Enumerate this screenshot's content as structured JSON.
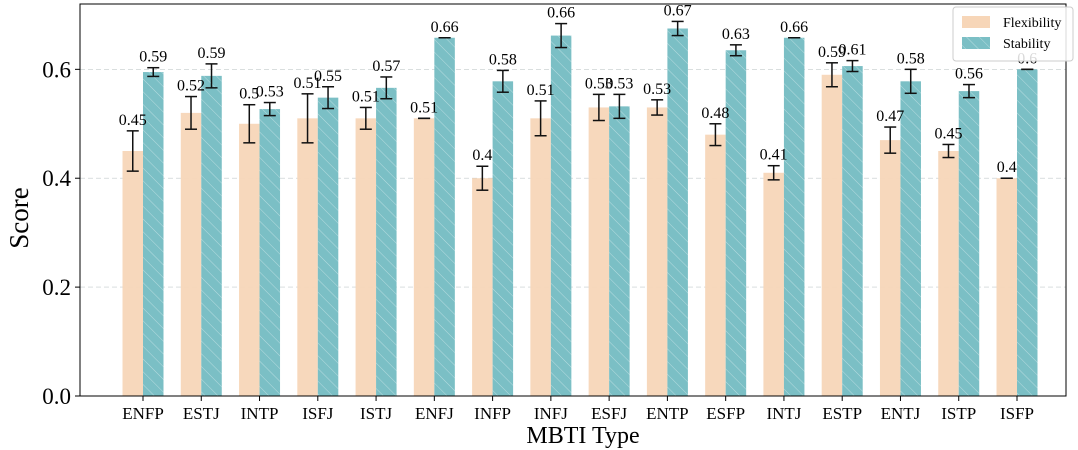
{
  "chart_data": {
    "type": "bar",
    "title": "",
    "xlabel": "MBTI Type",
    "ylabel": "Score",
    "ylim": [
      0,
      0.72
    ],
    "yticks": [
      0.0,
      0.2,
      0.4,
      0.6
    ],
    "ytick_labels": [
      "0.0",
      "0.2",
      "0.4",
      "0.6"
    ],
    "grid": true,
    "legend_position": "top-right",
    "categories": [
      "ENFP",
      "ESTJ",
      "INTP",
      "ISFJ",
      "ISTJ",
      "ENFJ",
      "INFP",
      "INFJ",
      "ESFJ",
      "ENTP",
      "ESFP",
      "INTJ",
      "ESTP",
      "ENTJ",
      "ISTP",
      "ISFP"
    ],
    "series": [
      {
        "name": "Flexibility",
        "color": "#f7d6b8",
        "values": [
          0.45,
          0.52,
          0.5,
          0.51,
          0.51,
          0.51,
          0.4,
          0.51,
          0.53,
          0.53,
          0.48,
          0.41,
          0.59,
          0.47,
          0.45,
          0.4
        ],
        "labels": [
          "0.45",
          "0.52",
          "0.5",
          "0.51",
          "0.51",
          "0.51",
          "0.4",
          "0.51",
          "0.53",
          "0.53",
          "0.48",
          "0.41",
          "0.59",
          "0.47",
          "0.45",
          "0.4"
        ],
        "errors": [
          0.037,
          0.03,
          0.035,
          0.045,
          0.02,
          0.0,
          0.022,
          0.032,
          0.024,
          0.014,
          0.02,
          0.013,
          0.022,
          0.024,
          0.012,
          0.0
        ]
      },
      {
        "name": "Stability",
        "color": "#7bbfc5",
        "values": [
          0.595,
          0.588,
          0.527,
          0.548,
          0.566,
          0.658,
          0.578,
          0.662,
          0.532,
          0.675,
          0.635,
          0.658,
          0.606,
          0.578,
          0.56,
          0.6
        ],
        "labels": [
          "0.59",
          "0.59",
          "0.53",
          "0.55",
          "0.57",
          "0.66",
          "0.58",
          "0.66",
          "0.53",
          "0.67",
          "0.63",
          "0.66",
          "0.61",
          "0.58",
          "0.56",
          "0.6"
        ],
        "errors": [
          0.008,
          0.022,
          0.012,
          0.02,
          0.02,
          0.0,
          0.02,
          0.022,
          0.022,
          0.013,
          0.01,
          0.0,
          0.01,
          0.022,
          0.012,
          0.0
        ]
      }
    ]
  }
}
